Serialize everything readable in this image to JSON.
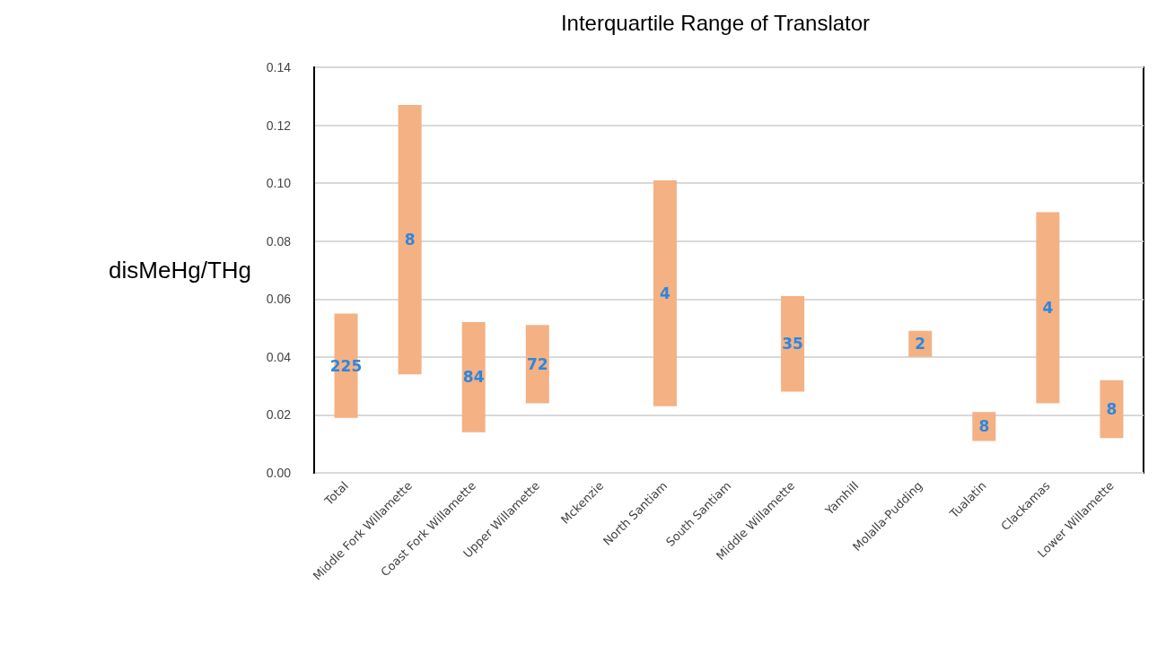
{
  "chart_data": {
    "type": "bar",
    "title": "Interquartile Range of Translator",
    "ylabel": "disMeHg/THg",
    "categories": [
      "Total",
      "Middle Fork Willamette",
      "Coast Fork Willamette",
      "Upper Willamette",
      "Mckenzie",
      "North Santiam",
      "South Santiam",
      "Middle Willamette",
      "Yamhill",
      "Molalla-Pudding",
      "Tualatin",
      "Clackamas",
      "Lower Willamette"
    ],
    "base": [
      0.019,
      0.034,
      0.014,
      0.024,
      null,
      0.023,
      null,
      0.028,
      null,
      0.04,
      0.011,
      0.024,
      0.012
    ],
    "values": [
      0.036,
      0.093,
      0.038,
      0.027,
      null,
      0.078,
      null,
      0.033,
      null,
      0.009,
      0.01,
      0.066,
      0.02
    ],
    "annotations": [
      "225",
      "8",
      "84",
      "72",
      "4",
      "35",
      "2",
      "8",
      "4",
      "8"
    ],
    "color": "#f4b183",
    "ylim": [
      0,
      0.14
    ],
    "yticks": [
      {
        "value": 0,
        "label": "0.00"
      },
      {
        "value": 0.02,
        "label": "0.02"
      },
      {
        "value": 0.04,
        "label": "0.04"
      },
      {
        "value": 0.06,
        "label": "0.06"
      },
      {
        "value": 0.08,
        "label": "0.08"
      },
      {
        "value": 0.1,
        "label": "0.10"
      },
      {
        "value": 0.12,
        "label": "0.12"
      },
      {
        "value": 0.14,
        "label": "0.14"
      }
    ],
    "grid": "y"
  }
}
